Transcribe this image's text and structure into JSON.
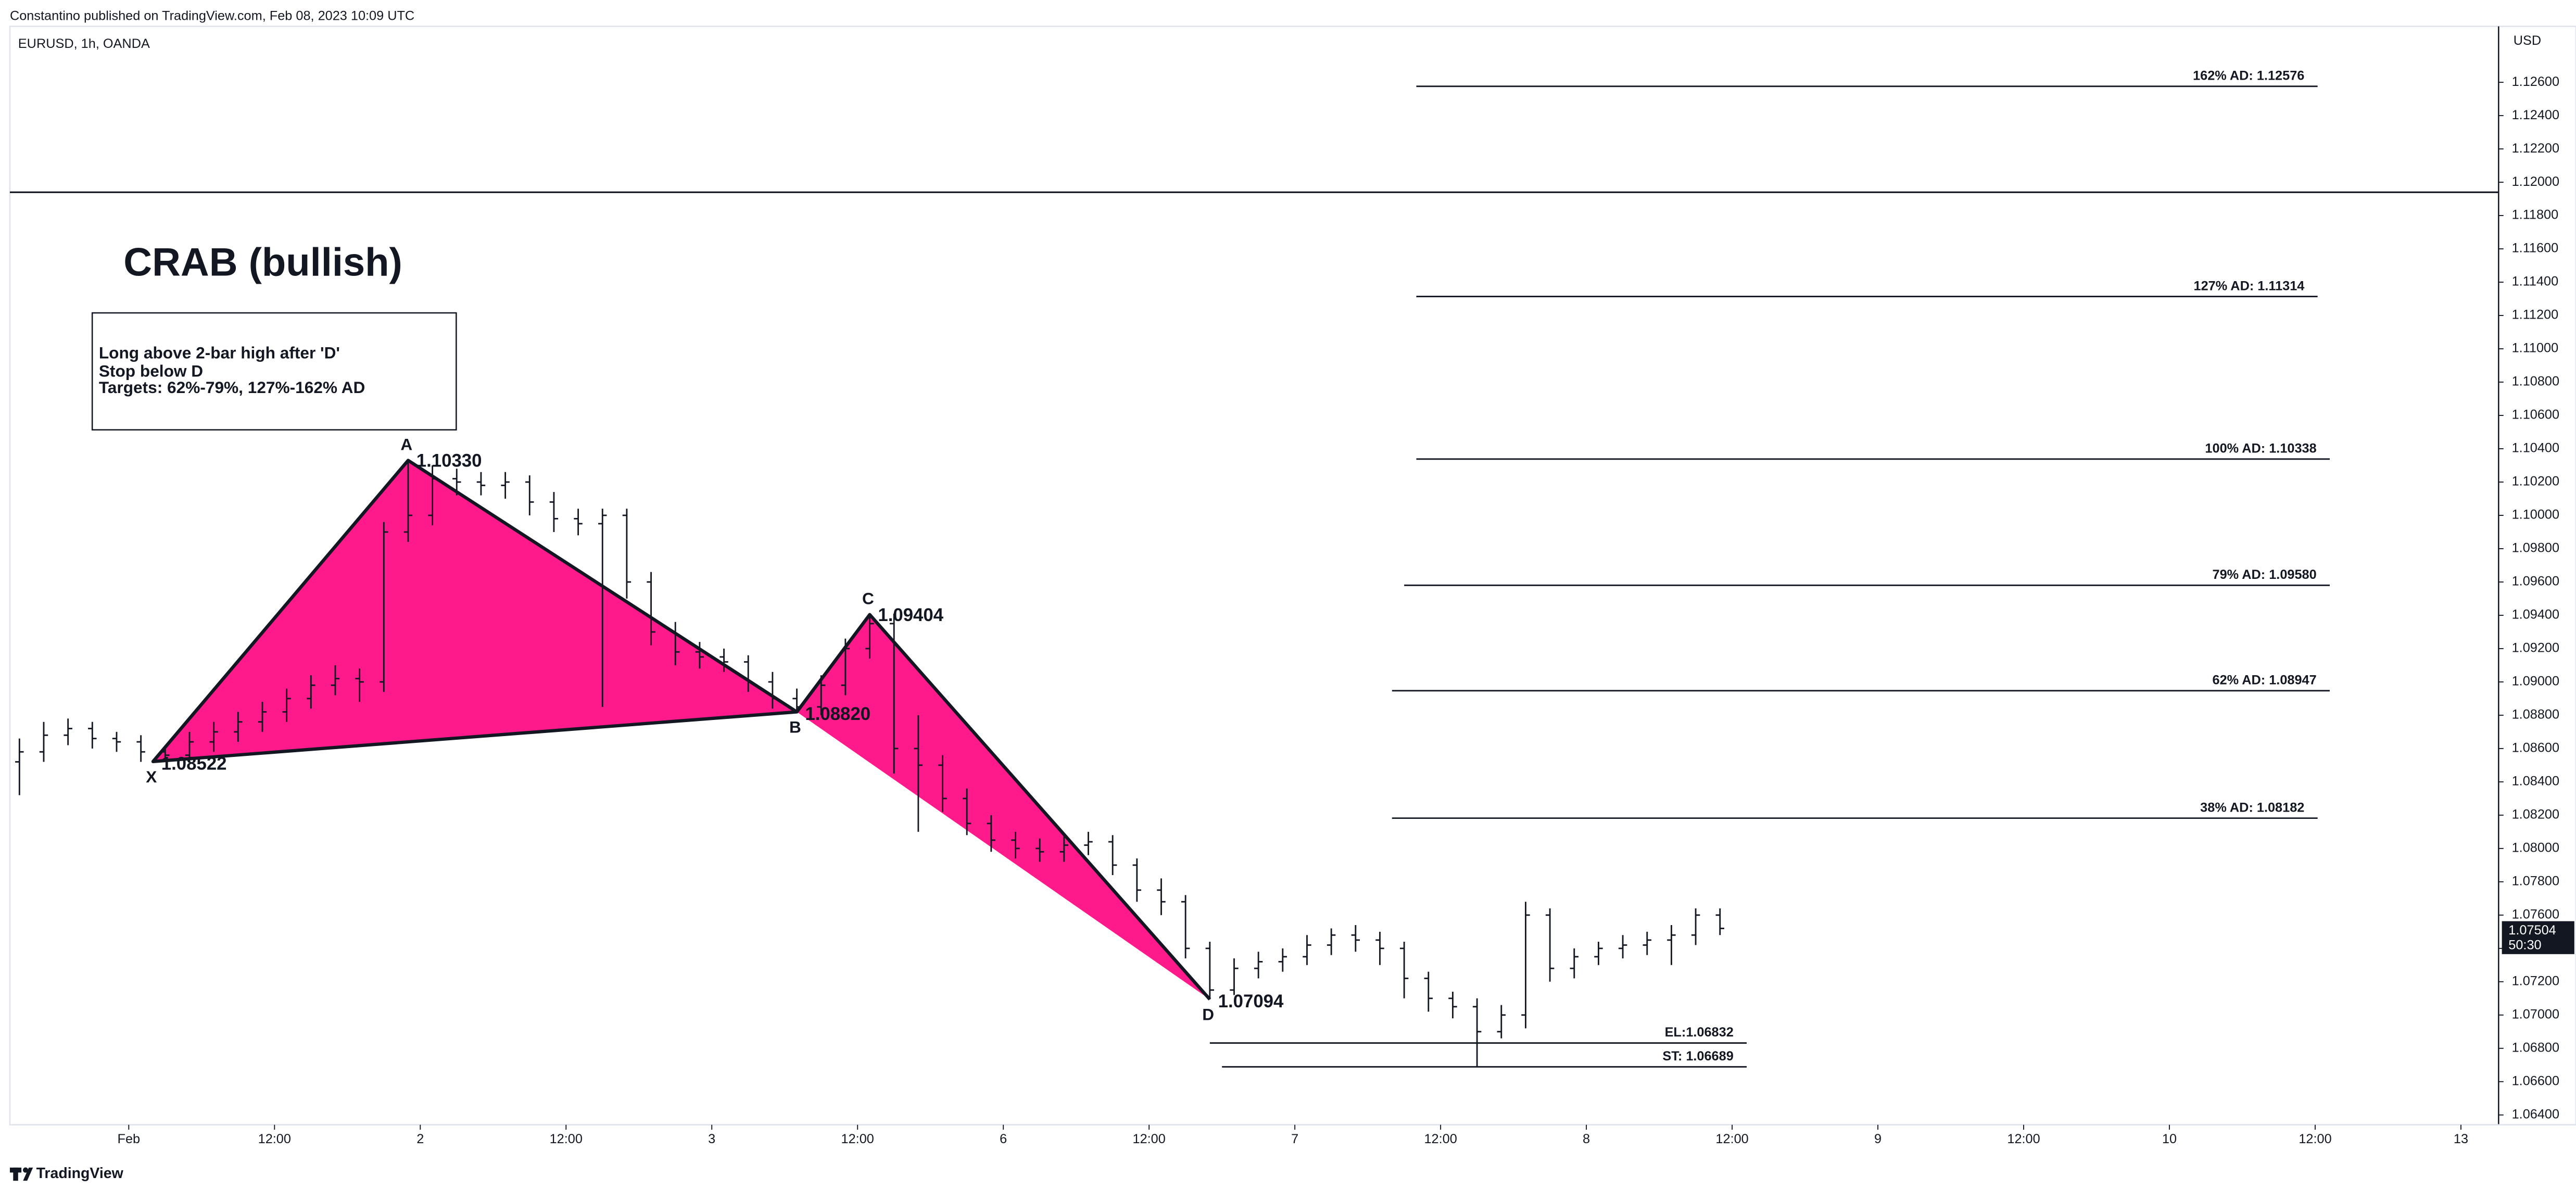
{
  "header": "Constantino published on TradingView.com, Feb 08, 2023 10:09 UTC",
  "footer": "TradingView",
  "chart_data": {
    "type": "ohlc",
    "symbol": "EURUSD, 1h, OANDA",
    "currency": "USD",
    "title": "CRAB (bullish)",
    "note": [
      "Long above 2-bar high after 'D'",
      "Stop below D",
      "Targets: 62%-79%, 127%-162% AD"
    ],
    "xlim": [
      -10.6,
      195.1
    ],
    "xticks": [
      {
        "value": 0,
        "label": "Feb"
      },
      {
        "value": 12,
        "label": "12:00"
      },
      {
        "value": 24,
        "label": "2"
      },
      {
        "value": 36,
        "label": "12:00"
      },
      {
        "value": 48,
        "label": "3"
      },
      {
        "value": 60,
        "label": "12:00"
      },
      {
        "value": 72,
        "label": "6"
      },
      {
        "value": 84,
        "label": "12:00"
      },
      {
        "value": 96,
        "label": "7"
      },
      {
        "value": 108,
        "label": "12:00"
      },
      {
        "value": 120,
        "label": "8"
      },
      {
        "value": 132,
        "label": "12:00"
      },
      {
        "value": 144,
        "label": "9"
      },
      {
        "value": 156,
        "label": "12:00"
      },
      {
        "value": 168,
        "label": "10"
      },
      {
        "value": 180,
        "label": "12:00"
      },
      {
        "value": 192,
        "label": "13"
      }
    ],
    "ylim": [
      1.06341,
      1.12936
    ],
    "yticks": [
      {
        "value": 1.064,
        "label": "1.06400"
      },
      {
        "value": 1.066,
        "label": "1.06600"
      },
      {
        "value": 1.068,
        "label": "1.06800"
      },
      {
        "value": 1.07,
        "label": "1.07000"
      },
      {
        "value": 1.072,
        "label": "1.07200"
      },
      {
        "value": 1.074,
        "label": "1.07400"
      },
      {
        "value": 1.076,
        "label": "1.07600"
      },
      {
        "value": 1.078,
        "label": "1.07800"
      },
      {
        "value": 1.08,
        "label": "1.08000"
      },
      {
        "value": 1.082,
        "label": "1.08200"
      },
      {
        "value": 1.084,
        "label": "1.08400"
      },
      {
        "value": 1.086,
        "label": "1.08600"
      },
      {
        "value": 1.088,
        "label": "1.08800"
      },
      {
        "value": 1.09,
        "label": "1.09000"
      },
      {
        "value": 1.092,
        "label": "1.09200"
      },
      {
        "value": 1.094,
        "label": "1.09400"
      },
      {
        "value": 1.096,
        "label": "1.09600"
      },
      {
        "value": 1.098,
        "label": "1.09800"
      },
      {
        "value": 1.1,
        "label": "1.10000"
      },
      {
        "value": 1.102,
        "label": "1.10200"
      },
      {
        "value": 1.104,
        "label": "1.10400"
      },
      {
        "value": 1.106,
        "label": "1.10600"
      },
      {
        "value": 1.108,
        "label": "1.10800"
      },
      {
        "value": 1.11,
        "label": "1.11000"
      },
      {
        "value": 1.112,
        "label": "1.11200"
      },
      {
        "value": 1.114,
        "label": "1.11400"
      },
      {
        "value": 1.116,
        "label": "1.11600"
      },
      {
        "value": 1.118,
        "label": "1.11800"
      },
      {
        "value": 1.12,
        "label": "1.12000"
      },
      {
        "value": 1.122,
        "label": "1.12200"
      },
      {
        "value": 1.124,
        "label": "1.12400"
      },
      {
        "value": 1.126,
        "label": "1.12600"
      }
    ],
    "color": "#131722",
    "x": [
      -9,
      -7,
      -5,
      -3,
      -1,
      1,
      3,
      5,
      7,
      9,
      11,
      13,
      15,
      17,
      19,
      21,
      23,
      25,
      27,
      29,
      31,
      33,
      35,
      37,
      39,
      41,
      43,
      45,
      47,
      49,
      51,
      53,
      55,
      57,
      59,
      61,
      63,
      65,
      67,
      69,
      71,
      73,
      75,
      77,
      79,
      81,
      83,
      85,
      87,
      89,
      91,
      93,
      95,
      97,
      99,
      101,
      103,
      105,
      107,
      109,
      111,
      113,
      115,
      117,
      119,
      121,
      123,
      125,
      127,
      129,
      131
    ],
    "open": [
      1.0852,
      1.0858,
      1.0868,
      1.0872,
      1.0866,
      1.0864,
      1.0858,
      1.0856,
      1.0864,
      1.087,
      1.0876,
      1.0882,
      1.089,
      1.0898,
      1.0902,
      1.09,
      1.099,
      1.1,
      1.1022,
      1.102,
      1.1018,
      1.102,
      1.1008,
      1.0998,
      1.0995,
      1.1,
      1.096,
      1.093,
      1.0918,
      1.0915,
      1.0912,
      1.09,
      1.089,
      1.0885,
      1.0898,
      1.092,
      1.0935,
      1.086,
      1.085,
      1.083,
      1.0815,
      1.0805,
      1.08,
      1.0798,
      1.0802,
      1.0804,
      1.079,
      1.0775,
      1.0768,
      1.074,
      1.0715,
      1.0728,
      1.0732,
      1.0735,
      1.0742,
      1.0748,
      1.0745,
      1.074,
      1.0722,
      1.071,
      1.0705,
      1.069,
      1.07,
      1.076,
      1.0728,
      1.0735,
      1.074,
      1.0742,
      1.0745,
      1.0748,
      1.076
    ],
    "high": [
      1.0866,
      1.0876,
      1.0878,
      1.0876,
      1.087,
      1.0868,
      1.0862,
      1.087,
      1.0876,
      1.0882,
      1.0888,
      1.0896,
      1.0904,
      1.091,
      1.0908,
      1.0996,
      1.1033,
      1.103,
      1.1028,
      1.1026,
      1.1026,
      1.1024,
      1.1014,
      1.1004,
      1.1004,
      1.1004,
      1.0966,
      1.0936,
      1.0924,
      1.092,
      1.0916,
      1.0906,
      1.0896,
      1.0904,
      1.0926,
      1.094,
      1.0941,
      1.088,
      1.0856,
      1.0836,
      1.082,
      1.081,
      1.0806,
      1.0808,
      1.081,
      1.0808,
      1.0794,
      1.0782,
      1.0772,
      1.0744,
      1.0734,
      1.0738,
      1.074,
      1.0748,
      1.0752,
      1.0754,
      1.075,
      1.0744,
      1.0726,
      1.0714,
      1.071,
      1.0706,
      1.0768,
      1.0764,
      1.074,
      1.0744,
      1.0748,
      1.075,
      1.0754,
      1.0764,
      1.0764
    ],
    "low": [
      1.0832,
      1.0852,
      1.0862,
      1.086,
      1.0858,
      1.0852,
      1.0852,
      1.0852,
      1.0858,
      1.0864,
      1.087,
      1.0876,
      1.0884,
      1.0892,
      1.0888,
      1.0894,
      1.0984,
      1.0994,
      1.1012,
      1.1012,
      1.101,
      1.1,
      1.099,
      1.0988,
      1.0885,
      1.095,
      1.0922,
      1.091,
      1.0908,
      1.0906,
      1.0894,
      1.0884,
      1.0882,
      1.088,
      1.0892,
      1.0914,
      1.0845,
      1.081,
      1.0822,
      1.0808,
      1.0798,
      1.0794,
      1.0792,
      1.0792,
      1.0796,
      1.0784,
      1.0768,
      1.076,
      1.0734,
      1.07094,
      1.0712,
      1.0722,
      1.0726,
      1.073,
      1.0736,
      1.0738,
      1.073,
      1.071,
      1.0702,
      1.0698,
      1.06689,
      1.0686,
      1.0692,
      1.072,
      1.0722,
      1.073,
      1.0734,
      1.0736,
      1.073,
      1.0742,
      1.0748
    ],
    "close": [
      1.0858,
      1.0868,
      1.0872,
      1.0866,
      1.0864,
      1.0858,
      1.0856,
      1.0864,
      1.087,
      1.0876,
      1.0882,
      1.089,
      1.0898,
      1.0902,
      1.09,
      1.099,
      1.1,
      1.1022,
      1.102,
      1.1018,
      1.102,
      1.1008,
      1.0998,
      1.0995,
      1.1,
      1.096,
      1.093,
      1.0918,
      1.0915,
      1.0912,
      1.09,
      1.089,
      1.0885,
      1.0898,
      1.092,
      1.0935,
      1.086,
      1.085,
      1.083,
      1.0815,
      1.0805,
      1.08,
      1.0798,
      1.0802,
      1.0804,
      1.079,
      1.0775,
      1.0768,
      1.074,
      1.0715,
      1.0728,
      1.0732,
      1.0735,
      1.0742,
      1.0748,
      1.0745,
      1.074,
      1.0722,
      1.071,
      1.0705,
      1.069,
      1.07,
      1.076,
      1.0728,
      1.0735,
      1.074,
      1.0742,
      1.0745,
      1.0748,
      1.076,
      1.0752
    ],
    "pattern": {
      "color": "#ff1a8c",
      "points": [
        "X",
        "A",
        "B",
        "C",
        "D"
      ],
      "x": [
        2,
        23,
        55,
        61,
        89
      ],
      "values": [
        1.08522,
        1.1033,
        1.0882,
        1.09404,
        1.07094
      ],
      "value_labels": [
        "1.08522",
        "1.10330",
        "1.08820",
        "1.09404",
        "1.07094"
      ]
    },
    "levels": {
      "labels": [
        "162% AD: 1.12576",
        "127% AD: 1.11314",
        "100% AD: 1.10338",
        "79% AD: 1.09580",
        "62% AD: 1.08947",
        "38% AD: 1.08182",
        "EL:1.06832",
        "ST: 1.06689"
      ],
      "values": [
        1.12576,
        1.11314,
        1.10338,
        1.0958,
        1.08947,
        1.08182,
        1.06832,
        1.06689
      ],
      "x_start": [
        106,
        106,
        106,
        105,
        104,
        104,
        89,
        90
      ],
      "x_end": [
        180.2,
        180.2,
        181.2,
        181.2,
        181.2,
        180.2,
        133.2,
        133.2
      ]
    },
    "horizontal_line": 1.1194,
    "last_price": {
      "value": 1.07504,
      "countdown": "50:30"
    }
  }
}
